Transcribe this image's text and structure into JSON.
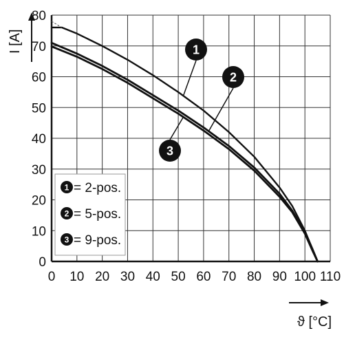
{
  "chart_data": {
    "type": "line",
    "xlabel": "ϑ [°C]",
    "ylabel": "I [A]",
    "xlim": [
      0,
      110
    ],
    "ylim": [
      0,
      80
    ],
    "x_ticks": [
      "0",
      "10",
      "20",
      "30",
      "40",
      "50",
      "60",
      "70",
      "80",
      "90",
      "100",
      "110"
    ],
    "y_ticks": [
      "0",
      "10",
      "20",
      "30",
      "40",
      "50",
      "60",
      "70",
      "80"
    ],
    "grid": true,
    "legend_position": "bottom-left",
    "series": [
      {
        "name": "1",
        "legend_label": "= 2-pos.",
        "x": [
          0,
          4,
          10,
          20,
          30,
          40,
          50,
          60,
          70,
          80,
          90,
          95,
          100,
          103,
          105
        ],
        "y": [
          76,
          76,
          74,
          70,
          65.5,
          60.5,
          55,
          49,
          42,
          34,
          24,
          18,
          10,
          4,
          0
        ]
      },
      {
        "name": "2",
        "legend_label": "= 5-pos.",
        "x": [
          0,
          10,
          20,
          30,
          40,
          50,
          60,
          70,
          80,
          90,
          95,
          100,
          103,
          105
        ],
        "y": [
          71,
          67.5,
          63.5,
          59,
          54,
          49,
          43.5,
          37.5,
          30.5,
          22,
          16.5,
          9.5,
          4,
          0
        ]
      },
      {
        "name": "3",
        "legend_label": "= 9-pos.",
        "x": [
          0,
          10,
          20,
          30,
          40,
          50,
          60,
          70,
          80,
          90,
          95,
          100,
          103,
          105
        ],
        "y": [
          69.8,
          66.5,
          62.5,
          58,
          53,
          48,
          42.5,
          36.5,
          29.5,
          21,
          16,
          9,
          3.5,
          0
        ]
      }
    ]
  }
}
